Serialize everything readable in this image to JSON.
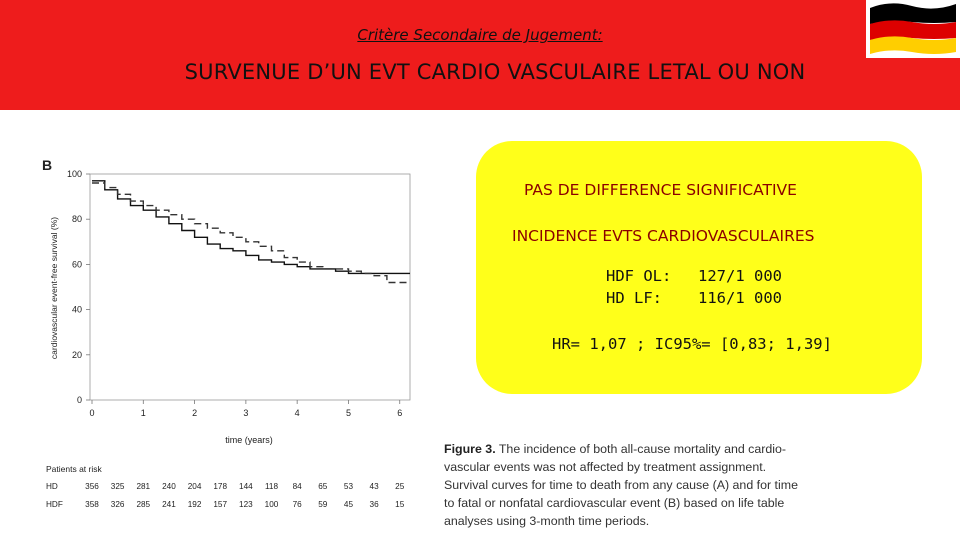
{
  "header": {
    "subtitle": "Critère Secondaire de Jugement:",
    "title": "SURVENUE D’UN EVT CARDIO VASCULAIRE LETAL OU NON",
    "flag_colors": [
      "#000000",
      "#dd0000",
      "#ffce00"
    ],
    "banner_color": "#ee1c1c"
  },
  "summary_box": {
    "color": "#ffff1a",
    "line1": "PAS DE DIFFERENCE SIGNIFICATIVE",
    "line2": "INCIDENCE EVTS CARDIOVASCULAIRES",
    "rows": [
      {
        "label": "HDF OL:",
        "value": "127/1 000"
      },
      {
        "label": "HD LF:",
        "value": "116/1 000"
      }
    ],
    "hr": "HR= 1,07 ; IC95%= [0,83; 1,39]"
  },
  "caption": {
    "bold": "Figure 3.",
    "text": " The incidence of both all-cause mortality and cardio-vascular events was not affected by treatment assignment. Survival curves for time to death from any cause (A) and for time to fatal or nonfatal cardiovascular event (B) based on life table analyses using 3-month time periods."
  },
  "chart_data": {
    "type": "line",
    "panel_label": "B",
    "xlabel": "time (years)",
    "ylabel": "cardiovascular event-free survival (%)",
    "xlim": [
      0,
      6.2
    ],
    "ylim": [
      0,
      100
    ],
    "x_ticks": [
      0,
      1,
      2,
      3,
      4,
      5,
      6
    ],
    "y_ticks": [
      0,
      20,
      40,
      60,
      80,
      100
    ],
    "series": [
      {
        "style": "solid",
        "x": [
          0,
          0.25,
          0.25,
          0.5,
          0.5,
          0.75,
          0.75,
          1.0,
          1.0,
          1.25,
          1.25,
          1.5,
          1.5,
          1.75,
          1.75,
          2.0,
          2.0,
          2.25,
          2.25,
          2.5,
          2.5,
          2.75,
          2.75,
          3.0,
          3.0,
          3.25,
          3.25,
          3.5,
          3.5,
          3.75,
          3.75,
          4.0,
          4.0,
          4.25,
          4.25,
          4.5,
          4.5,
          4.75,
          4.75,
          5.0,
          5.0,
          5.5,
          5.5,
          6.2
        ],
        "y": [
          97,
          97,
          93,
          93,
          89,
          89,
          86,
          86,
          84,
          84,
          81,
          81,
          78,
          78,
          75,
          75,
          72,
          72,
          69,
          69,
          67,
          67,
          66,
          66,
          64,
          64,
          62,
          62,
          61,
          61,
          60,
          60,
          59,
          59,
          58,
          58,
          58,
          58,
          57,
          57,
          56,
          56,
          56,
          56
        ]
      },
      {
        "style": "dashed",
        "x": [
          0,
          0.25,
          0.25,
          0.5,
          0.5,
          0.75,
          0.75,
          1.0,
          1.0,
          1.25,
          1.25,
          1.5,
          1.5,
          1.75,
          1.75,
          2.0,
          2.0,
          2.25,
          2.25,
          2.5,
          2.5,
          2.75,
          2.75,
          3.0,
          3.0,
          3.25,
          3.25,
          3.5,
          3.5,
          3.75,
          3.75,
          4.0,
          4.0,
          4.25,
          4.25,
          4.5,
          4.5,
          5.0,
          5.0,
          5.25,
          5.25,
          5.5,
          5.5,
          5.75,
          5.75,
          6.2
        ],
        "y": [
          96,
          96,
          94,
          94,
          91,
          91,
          88,
          88,
          86,
          86,
          84,
          84,
          82,
          82,
          80,
          80,
          78,
          78,
          76,
          76,
          74,
          74,
          72,
          72,
          70,
          70,
          68,
          68,
          66,
          66,
          63,
          63,
          61,
          61,
          59,
          59,
          58,
          58,
          57,
          57,
          56,
          56,
          55,
          55,
          52,
          52
        ]
      }
    ],
    "risk_table": {
      "title": "Patients at risk",
      "rows": [
        {
          "name": "HD",
          "values": [
            "356",
            "325",
            "281",
            "240",
            "204",
            "178",
            "144",
            "118",
            "84",
            "65",
            "53",
            "43",
            "25"
          ]
        },
        {
          "name": "HDF",
          "values": [
            "358",
            "326",
            "285",
            "241",
            "192",
            "157",
            "123",
            "100",
            "76",
            "59",
            "45",
            "36",
            "15"
          ]
        }
      ]
    }
  }
}
